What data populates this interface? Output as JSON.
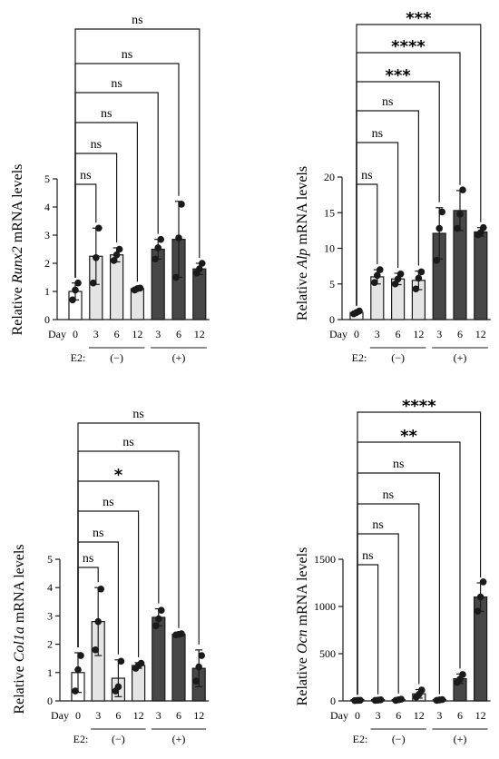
{
  "figure": {
    "x_prefix": "Day",
    "e2_label": "E2:",
    "e2_groups": [
      "(−)",
      "(+)"
    ],
    "colors": {
      "day0": "#ffffff",
      "minus": "#e4e4e4",
      "plus": "#474747",
      "stroke": "#1a1a1a"
    }
  },
  "chart_data": [
    {
      "type": "bar",
      "gene": "Runx2",
      "ylabel_pre": "Relative ",
      "ylabel_gene": "Runx2",
      "ylabel_post": " mRNA levels",
      "categories": [
        "0",
        "3",
        "6",
        "12",
        "3",
        "6",
        "12"
      ],
      "groups": [
        "day0",
        "minus",
        "minus",
        "minus",
        "plus",
        "plus",
        "plus"
      ],
      "values": [
        1.0,
        2.25,
        2.3,
        1.1,
        2.5,
        2.85,
        1.8
      ],
      "errors": [
        0.3,
        1.0,
        0.25,
        0.05,
        0.35,
        1.35,
        0.2
      ],
      "points": [
        [
          0.7,
          1.05,
          1.3
        ],
        [
          1.3,
          2.2,
          3.25
        ],
        [
          2.1,
          2.3,
          2.5
        ],
        [
          1.05,
          1.1,
          1.12
        ],
        [
          2.15,
          2.55,
          2.85
        ],
        [
          1.5,
          2.9,
          4.1
        ],
        [
          1.65,
          1.8,
          2.0
        ]
      ],
      "yticks": [
        "0",
        "1",
        "2",
        "3",
        "4",
        "5"
      ],
      "ylim": [
        0,
        5
      ],
      "comparisons": [
        {
          "to": 1,
          "label": "ns"
        },
        {
          "to": 2,
          "label": "ns"
        },
        {
          "to": 3,
          "label": "ns"
        },
        {
          "to": 4,
          "label": "ns"
        },
        {
          "to": 5,
          "label": "ns"
        },
        {
          "to": 6,
          "label": "ns"
        }
      ]
    },
    {
      "type": "bar",
      "gene": "Alp",
      "ylabel_pre": "Relative ",
      "ylabel_gene": "Alp",
      "ylabel_post": "  mRNA levels",
      "categories": [
        "0",
        "3",
        "6",
        "12",
        "3",
        "6",
        "12"
      ],
      "groups": [
        "day0",
        "minus",
        "minus",
        "minus",
        "plus",
        "plus",
        "plus"
      ],
      "values": [
        1.0,
        6.0,
        5.7,
        5.5,
        12.1,
        15.3,
        12.3
      ],
      "errors": [
        0.2,
        1.0,
        0.8,
        1.3,
        3.6,
        2.8,
        0.6
      ],
      "points": [
        [
          0.8,
          1.0,
          1.2
        ],
        [
          5.2,
          6.2,
          7.0
        ],
        [
          5.0,
          5.7,
          6.4
        ],
        [
          4.3,
          5.8,
          6.7
        ],
        [
          8.3,
          12.8,
          15.1
        ],
        [
          12.8,
          14.8,
          18.2
        ],
        [
          11.9,
          12.2,
          12.9
        ]
      ],
      "yticks": [
        "0",
        "5",
        "10",
        "15",
        "20"
      ],
      "ylim": [
        0,
        20
      ],
      "comparisons": [
        {
          "to": 1,
          "label": "ns"
        },
        {
          "to": 2,
          "label": "ns"
        },
        {
          "to": 3,
          "label": "ns"
        },
        {
          "to": 4,
          "label": "***"
        },
        {
          "to": 5,
          "label": "****"
        },
        {
          "to": 6,
          "label": "***"
        }
      ]
    },
    {
      "type": "bar",
      "gene": "Col1a",
      "ylabel_pre": "Relative ",
      "ylabel_gene": "Col1a",
      "ylabel_post": "  mRNA levels",
      "categories": [
        "0",
        "3",
        "6",
        "12",
        "3",
        "6",
        "12"
      ],
      "groups": [
        "day0",
        "minus",
        "minus",
        "minus",
        "plus",
        "plus",
        "plus"
      ],
      "values": [
        1.0,
        2.8,
        0.8,
        1.25,
        2.95,
        2.35,
        1.15
      ],
      "errors": [
        0.7,
        1.2,
        0.65,
        0.1,
        0.3,
        0.03,
        0.65
      ],
      "points": [
        [
          0.35,
          1.1,
          1.6
        ],
        [
          1.8,
          2.8,
          3.95
        ],
        [
          0.35,
          0.5,
          1.4
        ],
        [
          1.15,
          1.25,
          1.33
        ],
        [
          2.65,
          2.9,
          3.2
        ],
        [
          2.33,
          2.35,
          2.37
        ],
        [
          0.7,
          1.2,
          1.6
        ]
      ],
      "yticks": [
        "0",
        "1",
        "2",
        "3",
        "4",
        "5"
      ],
      "ylim": [
        0,
        5
      ],
      "comparisons": [
        {
          "to": 1,
          "label": "ns"
        },
        {
          "to": 2,
          "label": "ns"
        },
        {
          "to": 3,
          "label": "ns"
        },
        {
          "to": 4,
          "label": "*"
        },
        {
          "to": 5,
          "label": "ns"
        },
        {
          "to": 6,
          "label": "ns"
        }
      ]
    },
    {
      "type": "bar",
      "gene": "Ocn",
      "ylabel_pre": "Relative ",
      "ylabel_gene": "Ocn",
      "ylabel_post": " mRNA levels",
      "categories": [
        "0",
        "3",
        "6",
        "12",
        "3",
        "6",
        "12"
      ],
      "groups": [
        "day0",
        "minus",
        "minus",
        "minus",
        "plus",
        "plus",
        "plus"
      ],
      "values": [
        5,
        8,
        12,
        75,
        10,
        235,
        1100
      ],
      "errors": [
        3,
        4,
        8,
        45,
        5,
        50,
        150
      ],
      "points": [
        [
          3,
          5,
          7
        ],
        [
          5,
          8,
          11
        ],
        [
          5,
          12,
          18
        ],
        [
          40,
          70,
          115
        ],
        [
          6,
          10,
          14
        ],
        [
          195,
          230,
          280
        ],
        [
          950,
          1100,
          1260
        ]
      ],
      "yticks": [
        "0",
        "500",
        "1000",
        "1500"
      ],
      "ylim": [
        0,
        1500
      ],
      "comparisons": [
        {
          "to": 1,
          "label": "ns"
        },
        {
          "to": 2,
          "label": "ns"
        },
        {
          "to": 3,
          "label": "ns"
        },
        {
          "to": 4,
          "label": "ns"
        },
        {
          "to": 5,
          "label": "**"
        },
        {
          "to": 6,
          "label": "****"
        }
      ]
    }
  ]
}
